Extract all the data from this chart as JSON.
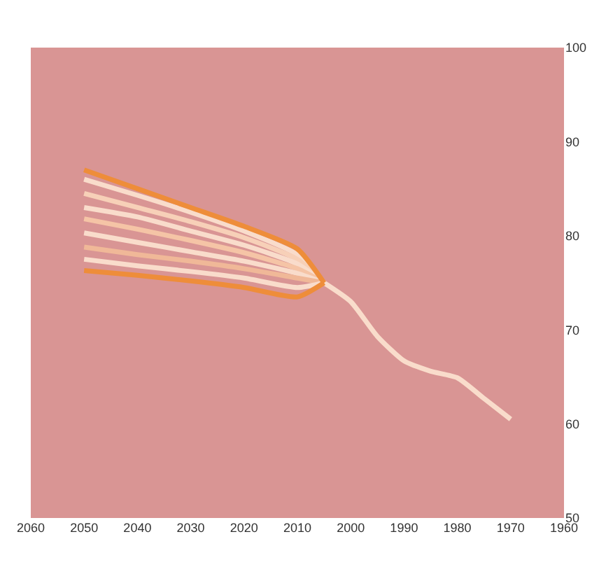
{
  "chart_data": {
    "type": "line",
    "xlim": [
      2060,
      1960
    ],
    "xticks": [
      2060,
      2050,
      2040,
      2030,
      2020,
      2010,
      2000,
      1990,
      1980,
      1970,
      1960
    ],
    "ylim": [
      50,
      100
    ],
    "yticks": [
      50,
      60,
      70,
      80,
      90,
      100
    ],
    "grid": false,
    "marker": "none",
    "line_style": "solid",
    "series": [
      {
        "color": "#f9dccb",
        "x": [
          1970,
          1975,
          1980,
          1985,
          1990,
          1995,
          2000,
          2005
        ],
        "values": [
          60.5,
          62.7,
          64.9,
          65.6,
          66.7,
          69.3,
          73,
          75
        ]
      },
      {
        "color": "#f9dccb",
        "x": [
          2005,
          2010,
          2020,
          2030,
          2040,
          2050
        ],
        "values": [
          75,
          78,
          80.5,
          82.5,
          84.3,
          86
        ]
      },
      {
        "color": "#f7d0b8",
        "x": [
          2005,
          2010,
          2020,
          2030,
          2040,
          2050
        ],
        "values": [
          75,
          77.5,
          79.8,
          81.5,
          83,
          84.5
        ]
      },
      {
        "color": "#f9dccb",
        "x": [
          2005,
          2010,
          2020,
          2030,
          2040,
          2050
        ],
        "values": [
          75,
          77,
          79,
          80.5,
          82,
          83
        ]
      },
      {
        "color": "#f5c4a6",
        "x": [
          2005,
          2010,
          2020,
          2030,
          2040,
          2050
        ],
        "values": [
          75,
          76.5,
          78.2,
          79.5,
          80.7,
          81.8
        ]
      },
      {
        "color": "#f9dccb",
        "x": [
          2005,
          2010,
          2020,
          2030,
          2040,
          2050
        ],
        "values": [
          75,
          76,
          77.3,
          78.3,
          79.3,
          80.3
        ]
      },
      {
        "color": "#f0b898",
        "x": [
          2005,
          2010,
          2020,
          2030,
          2040,
          2050
        ],
        "values": [
          75,
          75.5,
          76.5,
          77.3,
          78,
          78.8
        ]
      },
      {
        "color": "#f9dccb",
        "x": [
          2005,
          2010,
          2020,
          2030,
          2040,
          2050
        ],
        "values": [
          75,
          74.5,
          75.5,
          76.2,
          76.8,
          77.5
        ]
      },
      {
        "color": "#ee8d3a",
        "x": [
          2005,
          2010,
          2020,
          2030,
          2040,
          2050
        ],
        "values": [
          75,
          78.6,
          81,
          83,
          85,
          87
        ]
      },
      {
        "color": "#ee8d3a",
        "x": [
          2005,
          2010,
          2020,
          2030,
          2040,
          2050
        ],
        "values": [
          75,
          73.5,
          74.5,
          75.2,
          75.8,
          76.3
        ]
      }
    ]
  }
}
